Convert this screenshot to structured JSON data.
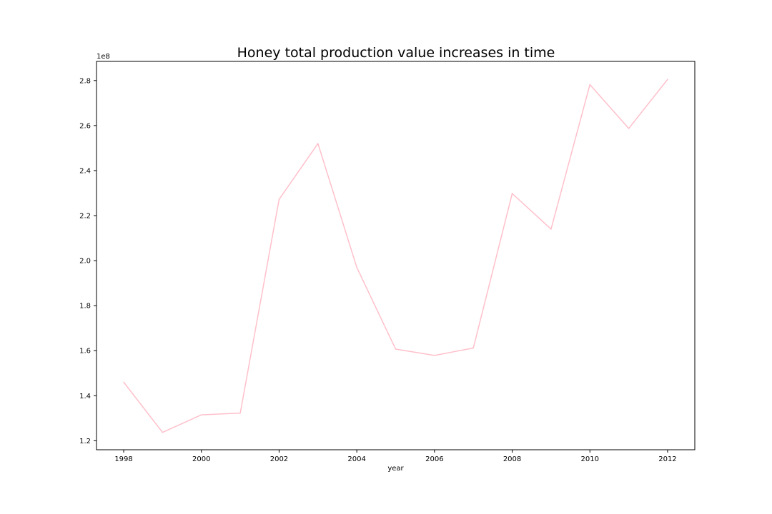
{
  "chart_data": {
    "type": "line",
    "title": "Honey total production value increases in time",
    "xlabel": "year",
    "ylabel": "",
    "y_offset_label": "1e8",
    "y_scale": 100000000,
    "xlim": [
      1997.3,
      2012.7
    ],
    "ylim": [
      1.16,
      2.885
    ],
    "x_ticks": [
      1998,
      2000,
      2002,
      2004,
      2006,
      2008,
      2010,
      2012
    ],
    "x_tick_labels": [
      "1998",
      "2000",
      "2002",
      "2004",
      "2006",
      "2008",
      "2010",
      "2012"
    ],
    "y_ticks": [
      1.2,
      1.4,
      1.6,
      1.8,
      2.0,
      2.2,
      2.4,
      2.6,
      2.8
    ],
    "y_tick_labels": [
      "1.2",
      "1.4",
      "1.6",
      "1.8",
      "2.0",
      "2.2",
      "2.4",
      "2.6",
      "2.8"
    ],
    "grid": false,
    "series": [
      {
        "color": "#ffc0cb",
        "x": [
          1998,
          1999,
          2000,
          2001,
          2002,
          2003,
          2004,
          2005,
          2006,
          2007,
          2008,
          2009,
          2010,
          2011,
          2012
        ],
        "values": [
          1.46,
          1.237,
          1.315,
          1.323,
          2.272,
          2.52,
          1.97,
          1.607,
          1.579,
          1.612,
          2.298,
          2.14,
          2.782,
          2.587,
          2.805
        ]
      }
    ]
  }
}
